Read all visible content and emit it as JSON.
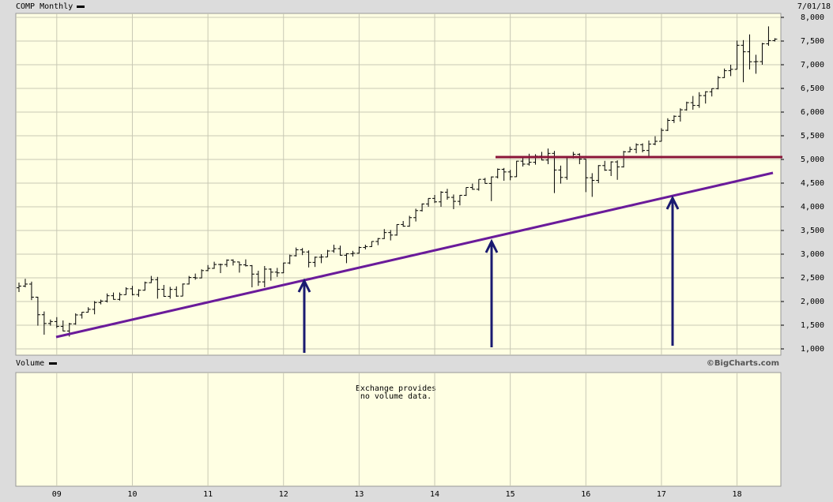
{
  "chart_data": {
    "type": "ohlc",
    "title": "COMP Monthly",
    "date": "7/01/18",
    "volume_title": "Volume",
    "volume_note": [
      "Exchange provides",
      "no volume data."
    ],
    "credit": "©BigCharts.com",
    "color": "#000000",
    "grid": true,
    "categories": [
      null,
      null,
      null,
      null,
      null,
      null,
      "09",
      null,
      null,
      null,
      null,
      null,
      null,
      null,
      null,
      null,
      null,
      null,
      "10",
      null,
      null,
      null,
      null,
      null,
      null,
      null,
      null,
      null,
      null,
      null,
      "11",
      null,
      null,
      null,
      null,
      null,
      null,
      null,
      null,
      null,
      null,
      null,
      "12",
      null,
      null,
      null,
      null,
      null,
      null,
      null,
      null,
      null,
      null,
      null,
      "13",
      null,
      null,
      null,
      null,
      null,
      null,
      null,
      null,
      null,
      null,
      null,
      "14",
      null,
      null,
      null,
      null,
      null,
      null,
      null,
      null,
      null,
      null,
      null,
      "15",
      null,
      null,
      null,
      null,
      null,
      null,
      null,
      null,
      null,
      null,
      null,
      "16",
      null,
      null,
      null,
      null,
      null,
      null,
      null,
      null,
      null,
      null,
      null,
      "17",
      null,
      null,
      null,
      null,
      null,
      null,
      null,
      null,
      null,
      null,
      null,
      "18",
      null,
      null,
      null,
      null,
      null,
      null
    ],
    "open": [
      2290,
      2326,
      2368,
      2092,
      1721,
      1536,
      1577,
      1476,
      1378,
      1529,
      1717,
      1774,
      1835,
      1979,
      2009,
      2122,
      2045,
      2145,
      2269,
      2147,
      2238,
      2398,
      2461,
      2257,
      2109,
      2255,
      2114,
      2369,
      2507,
      2498,
      2653,
      2700,
      2782,
      2781,
      2874,
      2835,
      2774,
      2756,
      2579,
      2415,
      2684,
      2620,
      2605,
      2814,
      2967,
      3092,
      3046,
      2827,
      2935,
      2940,
      3067,
      3116,
      2977,
      3010,
      3020,
      3142,
      3160,
      3268,
      3329,
      3456,
      3403,
      3626,
      3590,
      3771,
      3920,
      4060,
      4177,
      4104,
      4308,
      4199,
      4115,
      4243,
      4408,
      4370,
      4580,
      4493,
      4631,
      4792,
      4736,
      4635,
      4964,
      4901,
      4941,
      5070,
      4987,
      5128,
      4777,
      4620,
      5054,
      5109,
      5007,
      4614,
      4558,
      4870,
      4775,
      4948,
      4843,
      5162,
      5213,
      5312,
      5189,
      5324,
      5383,
      5615,
      5825,
      5912,
      6048,
      6199,
      6140,
      6348,
      6429,
      6496,
      6728,
      6874,
      6903,
      7411,
      7273,
      7063,
      7066,
      7442,
      7510
    ],
    "high": [
      2400,
      2480,
      2420,
      2100,
      1790,
      1620,
      1670,
      1600,
      1550,
      1750,
      1780,
      1880,
      2010,
      2040,
      2170,
      2190,
      2190,
      2300,
      2330,
      2260,
      2420,
      2540,
      2520,
      2350,
      2310,
      2320,
      2380,
      2540,
      2590,
      2680,
      2770,
      2840,
      2800,
      2890,
      2890,
      2840,
      2890,
      2770,
      2650,
      2750,
      2700,
      2710,
      2820,
      2990,
      3140,
      3130,
      3080,
      2950,
      3000,
      3090,
      3200,
      3180,
      3020,
      3070,
      3160,
      3200,
      3270,
      3340,
      3530,
      3510,
      3630,
      3700,
      3810,
      3960,
      4070,
      4180,
      4250,
      4330,
      4380,
      4260,
      4250,
      4410,
      4490,
      4580,
      4610,
      4640,
      4810,
      4820,
      4780,
      4970,
      5040,
      5120,
      5110,
      5160,
      5230,
      5180,
      4870,
      5060,
      5160,
      5130,
      5010,
      4710,
      4880,
      4970,
      4960,
      4980,
      5180,
      5270,
      5340,
      5340,
      5400,
      5490,
      5660,
      5870,
      5930,
      6080,
      6220,
      6340,
      6420,
      6440,
      6500,
      6760,
      6920,
      7000,
      7510,
      7520,
      7640,
      7210,
      7460,
      7810,
      7560
    ],
    "low": [
      2200,
      2300,
      2030,
      1490,
      1300,
      1490,
      1440,
      1370,
      1260,
      1510,
      1640,
      1770,
      1730,
      1940,
      1980,
      2040,
      2020,
      2140,
      2130,
      2100,
      2230,
      2390,
      2060,
      2100,
      2060,
      2100,
      2110,
      2360,
      2460,
      2490,
      2640,
      2690,
      2600,
      2730,
      2760,
      2610,
      2740,
      2300,
      2330,
      2300,
      2440,
      2520,
      2600,
      2790,
      2950,
      2980,
      2720,
      2730,
      2810,
      2940,
      3030,
      2970,
      2810,
      2950,
      3010,
      3100,
      3150,
      3190,
      3320,
      3290,
      3390,
      3580,
      3580,
      3690,
      3900,
      4000,
      4080,
      4000,
      4150,
      3950,
      4030,
      4230,
      4360,
      4340,
      4490,
      4120,
      4600,
      4550,
      4560,
      4630,
      4850,
      4870,
      4890,
      4980,
      4900,
      4290,
      4490,
      4570,
      5020,
      4900,
      4310,
      4210,
      4500,
      4760,
      4650,
      4570,
      4830,
      5150,
      5130,
      5150,
      5030,
      5300,
      5380,
      5600,
      5770,
      5800,
      6030,
      6050,
      6090,
      6180,
      6330,
      6480,
      6720,
      6760,
      6900,
      6630,
      6900,
      6810,
      7000,
      7400,
      7490
    ],
    "close": [
      2326,
      2368,
      2092,
      1721,
      1536,
      1577,
      1476,
      1378,
      1529,
      1717,
      1774,
      1835,
      1979,
      2009,
      2122,
      2045,
      2145,
      2269,
      2147,
      2238,
      2398,
      2461,
      2257,
      2109,
      2255,
      2114,
      2369,
      2507,
      2498,
      2653,
      2700,
      2782,
      2781,
      2874,
      2835,
      2774,
      2756,
      2579,
      2415,
      2684,
      2620,
      2605,
      2814,
      2967,
      3092,
      3046,
      2827,
      2935,
      2940,
      3067,
      3116,
      2977,
      3010,
      3020,
      3142,
      3160,
      3268,
      3329,
      3456,
      3403,
      3626,
      3590,
      3771,
      3920,
      4060,
      4177,
      4104,
      4308,
      4199,
      4115,
      4243,
      4408,
      4370,
      4580,
      4493,
      4631,
      4792,
      4736,
      4635,
      4964,
      4901,
      4941,
      5070,
      4987,
      5128,
      4777,
      4620,
      5054,
      5109,
      5007,
      4614,
      4558,
      4870,
      4775,
      4948,
      4843,
      5162,
      5213,
      5312,
      5189,
      5324,
      5383,
      5615,
      5825,
      5912,
      6048,
      6199,
      6140,
      6348,
      6429,
      6496,
      6728,
      6874,
      6903,
      7411,
      7273,
      7063,
      7066,
      7442,
      7510,
      7540
    ],
    "ylim": [
      1000,
      8000
    ],
    "yticks": [
      {
        "value": 1000,
        "label": "1,000"
      },
      {
        "value": 1500,
        "label": "1,500"
      },
      {
        "value": 2000,
        "label": "2,000"
      },
      {
        "value": 2500,
        "label": "2,500"
      },
      {
        "value": 3000,
        "label": "3,000"
      },
      {
        "value": 3500,
        "label": "3,500"
      },
      {
        "value": 4000,
        "label": "4,000"
      },
      {
        "value": 4500,
        "label": "4,500"
      },
      {
        "value": 5000,
        "label": "5,000"
      },
      {
        "value": 5500,
        "label": "5,500"
      },
      {
        "value": 6000,
        "label": "6,000"
      },
      {
        "value": 6500,
        "label": "6,500"
      },
      {
        "value": 7000,
        "label": "7,000"
      },
      {
        "value": 7500,
        "label": "7,500"
      },
      {
        "value": 8000,
        "label": "8,000"
      }
    ]
  }
}
